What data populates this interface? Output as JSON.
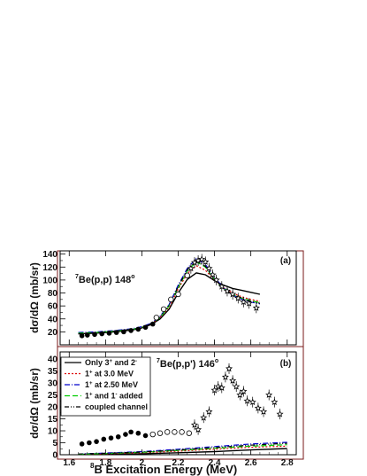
{
  "x_axis": {
    "label": "B Excitation Energy (MeV)",
    "label_sup": "8",
    "range": [
      1.55,
      2.85
    ],
    "ticks": [
      1.6,
      1.8,
      2.0,
      2.2,
      2.4,
      2.6,
      2.8
    ],
    "tick_labels": [
      "1.6",
      "1.8",
      "2",
      "2.2",
      "2.4",
      "2.6",
      "2.8"
    ]
  },
  "chart_data": [
    {
      "panel": "(a)",
      "type": "line",
      "ylabel": "dσ/dΩ (mb/sr)",
      "ylim": [
        0,
        145
      ],
      "yticks": [
        20,
        40,
        60,
        80,
        100,
        120,
        140
      ],
      "annotation": {
        "sup": "7",
        "text": "Be(p,p)  148",
        "deg": "o"
      },
      "series": [
        {
          "name": "Only 3+ and 2-",
          "color": "#000000",
          "dash": "",
          "x": [
            1.65,
            1.75,
            1.85,
            1.95,
            2.0,
            2.05,
            2.1,
            2.15,
            2.2,
            2.25,
            2.3,
            2.35,
            2.4,
            2.45,
            2.5,
            2.55,
            2.6,
            2.65
          ],
          "y": [
            17,
            18,
            20,
            23,
            26,
            31,
            40,
            55,
            80,
            101,
            111,
            108,
            99,
            92,
            87,
            84,
            81,
            78
          ]
        },
        {
          "name": "1+ at 3.0 MeV",
          "color": "#dd0000",
          "dash": "2,2",
          "x": [
            1.65,
            1.75,
            1.85,
            1.95,
            2.0,
            2.05,
            2.1,
            2.15,
            2.2,
            2.25,
            2.3,
            2.35,
            2.4,
            2.45,
            2.5,
            2.55,
            2.6,
            2.65
          ],
          "y": [
            18,
            19,
            21,
            24,
            27,
            32,
            42,
            58,
            86,
            110,
            122,
            115,
            100,
            88,
            80,
            74,
            70,
            67
          ]
        },
        {
          "name": "1+ at 2.50 MeV",
          "color": "#0000cc",
          "dash": "6,2,1,2",
          "x": [
            1.65,
            1.75,
            1.85,
            1.95,
            2.0,
            2.05,
            2.1,
            2.15,
            2.2,
            2.25,
            2.3,
            2.35,
            2.4,
            2.45,
            2.5,
            2.55,
            2.6,
            2.65
          ],
          "y": [
            19,
            20,
            22,
            25,
            28,
            33,
            44,
            62,
            92,
            118,
            133,
            124,
            104,
            88,
            77,
            70,
            66,
            63
          ]
        },
        {
          "name": "1+ and 1- added",
          "color": "#00cc00",
          "dash": "6,3",
          "x": [
            1.65,
            1.75,
            1.85,
            1.95,
            2.0,
            2.05,
            2.1,
            2.15,
            2.2,
            2.25,
            2.3,
            2.35,
            2.4,
            2.45,
            2.5,
            2.55,
            2.6,
            2.65
          ],
          "y": [
            18,
            19,
            21,
            24,
            27,
            32,
            42,
            60,
            88,
            114,
            128,
            120,
            101,
            87,
            78,
            72,
            68,
            65
          ]
        },
        {
          "name": "coupled channel",
          "color": "#000000",
          "dash": "5,2,1,2,1,2",
          "x": [
            1.65,
            1.75,
            1.85,
            1.95,
            2.0,
            2.05,
            2.1,
            2.15,
            2.2,
            2.25,
            2.3,
            2.35,
            2.4,
            2.45,
            2.5,
            2.55,
            2.6,
            2.65
          ],
          "y": [
            17,
            18,
            21,
            24,
            27,
            32,
            43,
            61,
            90,
            116,
            130,
            121,
            102,
            87,
            78,
            71,
            67,
            64
          ]
        }
      ],
      "data_filled": {
        "x": [
          1.67,
          1.7,
          1.74,
          1.78,
          1.82,
          1.86,
          1.9,
          1.94,
          1.98,
          2.02,
          2.06
        ],
        "y": [
          14,
          15,
          16,
          17,
          18,
          19,
          20,
          22,
          24,
          27,
          32
        ]
      },
      "data_open": {
        "x": [
          2.08,
          2.12,
          2.16,
          2.2,
          2.25
        ],
        "y": [
          42,
          55,
          70,
          78,
          107
        ]
      },
      "data_stars": {
        "x": [
          2.27,
          2.29,
          2.31,
          2.33,
          2.35,
          2.37,
          2.39,
          2.41,
          2.44,
          2.47,
          2.5,
          2.53,
          2.56,
          2.59,
          2.63
        ],
        "y": [
          118,
          127,
          130,
          132,
          128,
          118,
          108,
          100,
          90,
          83,
          78,
          72,
          66,
          64,
          57
        ]
      }
    },
    {
      "panel": "(b)",
      "type": "line",
      "ylabel": "dσ/dΩ (mb/sr)",
      "ylim": [
        0,
        43
      ],
      "yticks": [
        0,
        5,
        10,
        15,
        20,
        25,
        30,
        35,
        40
      ],
      "annotation": {
        "sup": "7",
        "text": "Be(p,p')  146",
        "deg": "o"
      },
      "series": [
        {
          "name": "Only 3+ and 2-",
          "color": "#000000",
          "dash": "",
          "x": [
            1.65,
            1.8,
            2.0,
            2.2,
            2.4,
            2.6,
            2.8
          ],
          "y": [
            0.1,
            0.2,
            0.4,
            0.8,
            1.3,
            2.0,
            2.6
          ]
        },
        {
          "name": "1+ at 3.0 MeV",
          "color": "#dd0000",
          "dash": "2,2",
          "x": [
            1.65,
            1.8,
            2.0,
            2.2,
            2.4,
            2.6,
            2.8
          ],
          "y": [
            0.2,
            0.4,
            0.8,
            1.5,
            2.3,
            3.1,
            3.6
          ]
        },
        {
          "name": "1+ at 2.50 MeV",
          "color": "#0000cc",
          "dash": "6,2,1,2",
          "x": [
            1.65,
            1.8,
            2.0,
            2.2,
            2.4,
            2.6,
            2.8
          ],
          "y": [
            0.3,
            0.7,
            1.3,
            2.3,
            3.4,
            4.5,
            5.2
          ]
        },
        {
          "name": "1+ and 1- added",
          "color": "#00cc00",
          "dash": "6,3",
          "x": [
            1.65,
            1.8,
            2.0,
            2.2,
            2.4,
            2.6,
            2.8
          ],
          "y": [
            0.2,
            0.5,
            1.0,
            1.8,
            2.7,
            3.6,
            4.2
          ]
        },
        {
          "name": "coupled channel",
          "color": "#000000",
          "dash": "5,2,1,2,1,2",
          "x": [
            1.65,
            1.8,
            2.0,
            2.2,
            2.4,
            2.6,
            2.8
          ],
          "y": [
            0.3,
            0.6,
            1.1,
            2.0,
            3.0,
            4.0,
            4.8
          ]
        }
      ],
      "data_filled": {
        "x": [
          1.67,
          1.71,
          1.75,
          1.79,
          1.83,
          1.87,
          1.91,
          1.94,
          1.98,
          2.02
        ],
        "y": [
          4.5,
          5.0,
          5.5,
          6.5,
          7.0,
          7.5,
          8.5,
          9.5,
          9.0,
          8.0
        ]
      },
      "data_open": {
        "x": [
          2.06,
          2.1,
          2.14,
          2.18,
          2.22,
          2.26
        ],
        "y": [
          8.5,
          9.0,
          9.5,
          9.5,
          9.5,
          9.0
        ]
      },
      "data_stars": {
        "x": [
          2.29,
          2.31,
          2.34,
          2.37,
          2.4,
          2.42,
          2.44,
          2.46,
          2.48,
          2.5,
          2.52,
          2.54,
          2.56,
          2.58,
          2.61,
          2.64,
          2.67,
          2.7,
          2.73,
          2.76
        ],
        "y": [
          12.5,
          10.5,
          15.5,
          18,
          27,
          28.5,
          28,
          32.5,
          36,
          31,
          28.5,
          25,
          26.5,
          22.5,
          22,
          19.5,
          18,
          25,
          22,
          17
        ]
      }
    }
  ],
  "legend": {
    "entries": [
      {
        "text": "Only 3",
        "sup1": "+",
        "mid": " and 2",
        "sup2": "-"
      },
      {
        "text": "1",
        "sup1": "+",
        "mid": " at 3.0 MeV",
        "sup2": ""
      },
      {
        "text": "1",
        "sup1": "+",
        "mid": " at 2.50 MeV",
        "sup2": ""
      },
      {
        "text": "1",
        "sup1": "+",
        "mid": " and 1",
        "sup2": "-",
        "tail": " added"
      },
      {
        "text": "coupled channel",
        "sup1": "",
        "mid": "",
        "sup2": ""
      }
    ]
  }
}
